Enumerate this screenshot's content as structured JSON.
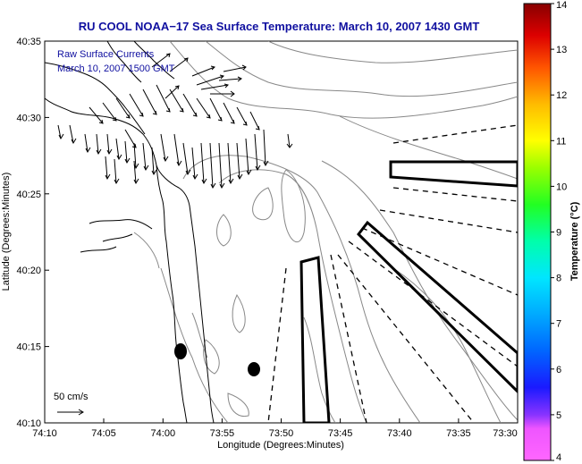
{
  "title": "RU COOL  NOAA−17  Sea Surface Temperature:  March 10, 2007 1430 GMT",
  "legend": {
    "line1": "Raw Surface Currents",
    "line2": "March 10, 2007 1500 GMT"
  },
  "scale_label": "50 cm/s",
  "xlabel": "Longitude (Degrees:Minutes)",
  "ylabel": "Latitude (Degrees:Minutes)",
  "x_ticks": [
    "74:10",
    "74:05",
    "74:00",
    "73:55",
    "73:50",
    "73:45",
    "73:40",
    "73:35",
    "73:30"
  ],
  "y_ticks": [
    "40:35",
    "40:30",
    "40:25",
    "40:20",
    "40:15",
    "40:10"
  ],
  "colorbar": {
    "label": "Temperature (°C)",
    "ticks": [
      "14",
      "13",
      "12",
      "11",
      "10",
      "9",
      "8",
      "7",
      "6",
      "5",
      "4"
    ],
    "range": [
      4,
      14
    ],
    "colors": [
      "#ff66ff",
      "#8833ff",
      "#1a1aff",
      "#0088ff",
      "#00ddff",
      "#00ff99",
      "#44ff00",
      "#ccff00",
      "#ffee00",
      "#ff9900",
      "#ff3300",
      "#cc0000",
      "#880000"
    ]
  },
  "colors": {
    "title": "#1010a0",
    "coastline": "#000000",
    "bathymetry": "#888888",
    "vectors": "#000000"
  }
}
